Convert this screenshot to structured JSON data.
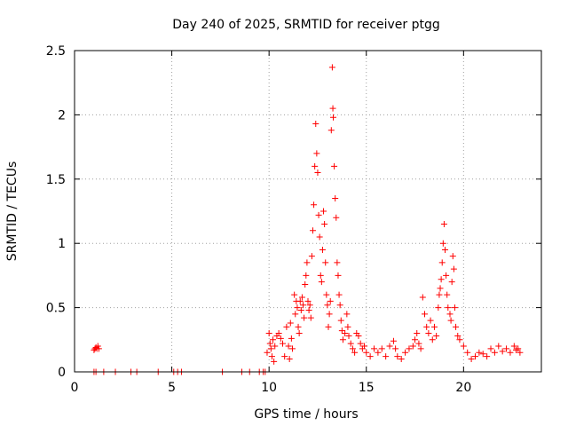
{
  "chart_data": {
    "type": "scatter",
    "title": "Day 240 of 2025, SRMTID for receiver ptgg",
    "xlabel": "GPS time / hours",
    "ylabel": "SRMTID / TECUs",
    "xlim": [
      0,
      24
    ],
    "ylim": [
      0,
      2.5
    ],
    "xticks": [
      0,
      5,
      10,
      15,
      20
    ],
    "xtick_labels": [
      "0",
      "5",
      "10",
      "15",
      "20"
    ],
    "yticks": [
      0,
      0.5,
      1,
      1.5,
      2,
      2.5
    ],
    "ytick_labels": [
      "0",
      "0.5",
      "1",
      "1.5",
      "2",
      "2.5"
    ],
    "grid": true,
    "marker": "+",
    "color": "#ff0000",
    "series": [
      {
        "name": "SRMTID",
        "points": [
          [
            1.0,
            0.17
          ],
          [
            1.05,
            0.18
          ],
          [
            1.1,
            0.19
          ],
          [
            1.15,
            0.18
          ],
          [
            1.2,
            0.2
          ],
          [
            1.25,
            0.18
          ],
          [
            1.0,
            0.0
          ],
          [
            1.1,
            0.0
          ],
          [
            1.5,
            0.0
          ],
          [
            2.1,
            0.0
          ],
          [
            2.9,
            0.0
          ],
          [
            3.2,
            0.0
          ],
          [
            4.3,
            0.0
          ],
          [
            5.1,
            0.0
          ],
          [
            5.3,
            0.0
          ],
          [
            5.5,
            0.0
          ],
          [
            7.6,
            0.0
          ],
          [
            8.6,
            0.0
          ],
          [
            9.0,
            0.0
          ],
          [
            9.5,
            0.0
          ],
          [
            9.7,
            0.0
          ],
          [
            9.8,
            0.0
          ],
          [
            9.9,
            0.15
          ],
          [
            10.0,
            0.3
          ],
          [
            10.05,
            0.22
          ],
          [
            10.1,
            0.18
          ],
          [
            10.15,
            0.12
          ],
          [
            10.2,
            0.25
          ],
          [
            10.25,
            0.08
          ],
          [
            10.3,
            0.2
          ],
          [
            10.4,
            0.28
          ],
          [
            10.5,
            0.3
          ],
          [
            10.6,
            0.26
          ],
          [
            10.7,
            0.22
          ],
          [
            10.8,
            0.12
          ],
          [
            10.9,
            0.35
          ],
          [
            11.0,
            0.2
          ],
          [
            11.05,
            0.1
          ],
          [
            11.1,
            0.38
          ],
          [
            11.15,
            0.26
          ],
          [
            11.2,
            0.18
          ],
          [
            11.3,
            0.6
          ],
          [
            11.35,
            0.45
          ],
          [
            11.4,
            0.55
          ],
          [
            11.45,
            0.5
          ],
          [
            11.5,
            0.35
          ],
          [
            11.55,
            0.3
          ],
          [
            11.6,
            0.55
          ],
          [
            11.65,
            0.48
          ],
          [
            11.7,
            0.58
          ],
          [
            11.75,
            0.52
          ],
          [
            11.8,
            0.42
          ],
          [
            11.85,
            0.68
          ],
          [
            11.9,
            0.75
          ],
          [
            11.95,
            0.85
          ],
          [
            12.0,
            0.55
          ],
          [
            12.05,
            0.48
          ],
          [
            12.1,
            0.52
          ],
          [
            12.15,
            0.42
          ],
          [
            12.2,
            0.9
          ],
          [
            12.25,
            1.1
          ],
          [
            12.3,
            1.3
          ],
          [
            12.35,
            1.6
          ],
          [
            12.4,
            1.93
          ],
          [
            12.45,
            1.7
          ],
          [
            12.5,
            1.55
          ],
          [
            12.55,
            1.22
          ],
          [
            12.6,
            1.05
          ],
          [
            12.65,
            0.75
          ],
          [
            12.7,
            0.7
          ],
          [
            12.75,
            0.95
          ],
          [
            12.8,
            1.25
          ],
          [
            12.85,
            1.15
          ],
          [
            12.9,
            0.85
          ],
          [
            12.95,
            0.6
          ],
          [
            13.0,
            0.52
          ],
          [
            13.05,
            0.35
          ],
          [
            13.1,
            0.45
          ],
          [
            13.15,
            0.55
          ],
          [
            13.2,
            1.88
          ],
          [
            13.25,
            2.37
          ],
          [
            13.28,
            2.05
          ],
          [
            13.3,
            1.98
          ],
          [
            13.35,
            1.6
          ],
          [
            13.4,
            1.35
          ],
          [
            13.45,
            1.2
          ],
          [
            13.5,
            0.85
          ],
          [
            13.55,
            0.75
          ],
          [
            13.6,
            0.6
          ],
          [
            13.65,
            0.52
          ],
          [
            13.7,
            0.4
          ],
          [
            13.75,
            0.32
          ],
          [
            13.8,
            0.25
          ],
          [
            13.9,
            0.3
          ],
          [
            14.0,
            0.45
          ],
          [
            14.05,
            0.35
          ],
          [
            14.1,
            0.28
          ],
          [
            14.2,
            0.22
          ],
          [
            14.3,
            0.18
          ],
          [
            14.4,
            0.15
          ],
          [
            14.5,
            0.3
          ],
          [
            14.6,
            0.28
          ],
          [
            14.7,
            0.22
          ],
          [
            14.8,
            0.18
          ],
          [
            14.9,
            0.2
          ],
          [
            15.0,
            0.15
          ],
          [
            15.2,
            0.12
          ],
          [
            15.4,
            0.18
          ],
          [
            15.6,
            0.15
          ],
          [
            15.8,
            0.18
          ],
          [
            16.0,
            0.12
          ],
          [
            16.2,
            0.2
          ],
          [
            16.4,
            0.24
          ],
          [
            16.5,
            0.18
          ],
          [
            16.6,
            0.12
          ],
          [
            16.8,
            0.1
          ],
          [
            17.0,
            0.15
          ],
          [
            17.2,
            0.18
          ],
          [
            17.4,
            0.2
          ],
          [
            17.5,
            0.25
          ],
          [
            17.6,
            0.3
          ],
          [
            17.7,
            0.22
          ],
          [
            17.8,
            0.18
          ],
          [
            17.9,
            0.58
          ],
          [
            18.0,
            0.45
          ],
          [
            18.1,
            0.35
          ],
          [
            18.2,
            0.3
          ],
          [
            18.3,
            0.4
          ],
          [
            18.4,
            0.25
          ],
          [
            18.5,
            0.35
          ],
          [
            18.6,
            0.28
          ],
          [
            18.7,
            0.5
          ],
          [
            18.75,
            0.6
          ],
          [
            18.8,
            0.65
          ],
          [
            18.85,
            0.72
          ],
          [
            18.9,
            0.85
          ],
          [
            18.95,
            1.0
          ],
          [
            19.0,
            1.15
          ],
          [
            19.05,
            0.95
          ],
          [
            19.1,
            0.75
          ],
          [
            19.15,
            0.6
          ],
          [
            19.2,
            0.5
          ],
          [
            19.3,
            0.45
          ],
          [
            19.35,
            0.4
          ],
          [
            19.4,
            0.7
          ],
          [
            19.45,
            0.9
          ],
          [
            19.5,
            0.8
          ],
          [
            19.55,
            0.5
          ],
          [
            19.6,
            0.35
          ],
          [
            19.7,
            0.28
          ],
          [
            19.8,
            0.25
          ],
          [
            20.0,
            0.2
          ],
          [
            20.2,
            0.15
          ],
          [
            20.4,
            0.1
          ],
          [
            20.6,
            0.12
          ],
          [
            20.8,
            0.15
          ],
          [
            21.0,
            0.14
          ],
          [
            21.2,
            0.12
          ],
          [
            21.4,
            0.18
          ],
          [
            21.6,
            0.15
          ],
          [
            21.8,
            0.2
          ],
          [
            22.0,
            0.16
          ],
          [
            22.2,
            0.18
          ],
          [
            22.4,
            0.15
          ],
          [
            22.6,
            0.2
          ],
          [
            22.7,
            0.17
          ],
          [
            22.8,
            0.18
          ],
          [
            22.9,
            0.15
          ]
        ]
      }
    ]
  }
}
